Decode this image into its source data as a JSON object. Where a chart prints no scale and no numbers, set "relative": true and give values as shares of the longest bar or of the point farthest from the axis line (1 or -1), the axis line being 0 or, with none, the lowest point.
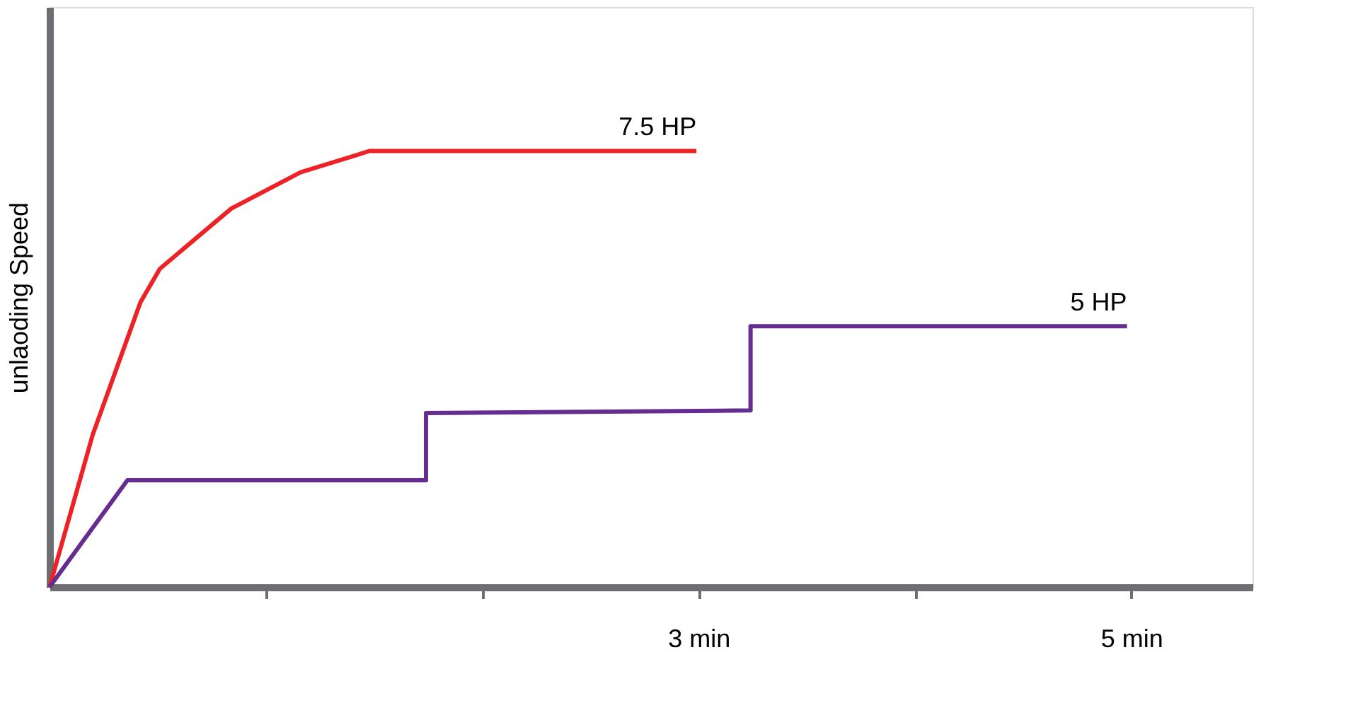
{
  "chart_data": {
    "type": "line",
    "relative": true,
    "ylabel": "unlaoding Speed",
    "grid": false,
    "legend": false,
    "marker": "none",
    "line_style": "solid",
    "xlim": [
      0,
      5.56
    ],
    "xticks": [
      {
        "value": 1,
        "label": null
      },
      {
        "value": 2,
        "label": null
      },
      {
        "value": 3,
        "label": "3 min"
      },
      {
        "value": 4,
        "label": null
      },
      {
        "value": 5,
        "label": "5 min"
      }
    ],
    "series": [
      {
        "name": "7.5 HP",
        "color": "#ee2127",
        "x": [
          0,
          0.2,
          0.42,
          0.51,
          0.84,
          1.16,
          1.48,
          2.99
        ],
        "values": [
          0,
          0.35,
          0.653,
          0.73,
          0.868,
          0.951,
          1,
          1
        ]
      },
      {
        "name": "5 HP",
        "color": "#662d91",
        "x": [
          0,
          0.36,
          1.74,
          1.74,
          3.24,
          3.24,
          4.98
        ],
        "values": [
          0,
          0.245,
          0.245,
          0.399,
          0.405,
          0.598,
          0.598
        ]
      }
    ]
  }
}
